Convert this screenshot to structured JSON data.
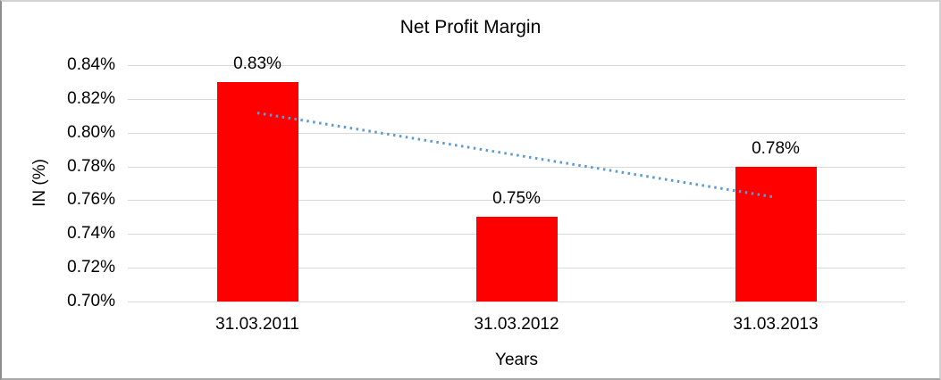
{
  "chart_data": {
    "type": "bar",
    "title": "Net Profit Margin",
    "xlabel": "Years",
    "ylabel": "IN (%)",
    "categories": [
      "31.03.2011",
      "31.03.2012",
      "31.03.2013"
    ],
    "values": [
      0.83,
      0.75,
      0.78
    ],
    "value_labels": [
      "0.83%",
      "0.75%",
      "0.78%"
    ],
    "y_ticks": [
      "0.84%",
      "0.82%",
      "0.80%",
      "0.78%",
      "0.76%",
      "0.74%",
      "0.72%",
      "0.70%"
    ],
    "ylim": [
      0.7,
      0.84
    ],
    "y_step": 0.02,
    "grid": true,
    "legend": false,
    "trendline": {
      "type": "linear",
      "style": "dotted",
      "start_value": 0.8117,
      "end_value": 0.7617
    },
    "colors": {
      "bar": "#ff0000",
      "trendline": "#5b9bd5",
      "gridline": "#d9d9d9",
      "text": "#000000"
    }
  }
}
